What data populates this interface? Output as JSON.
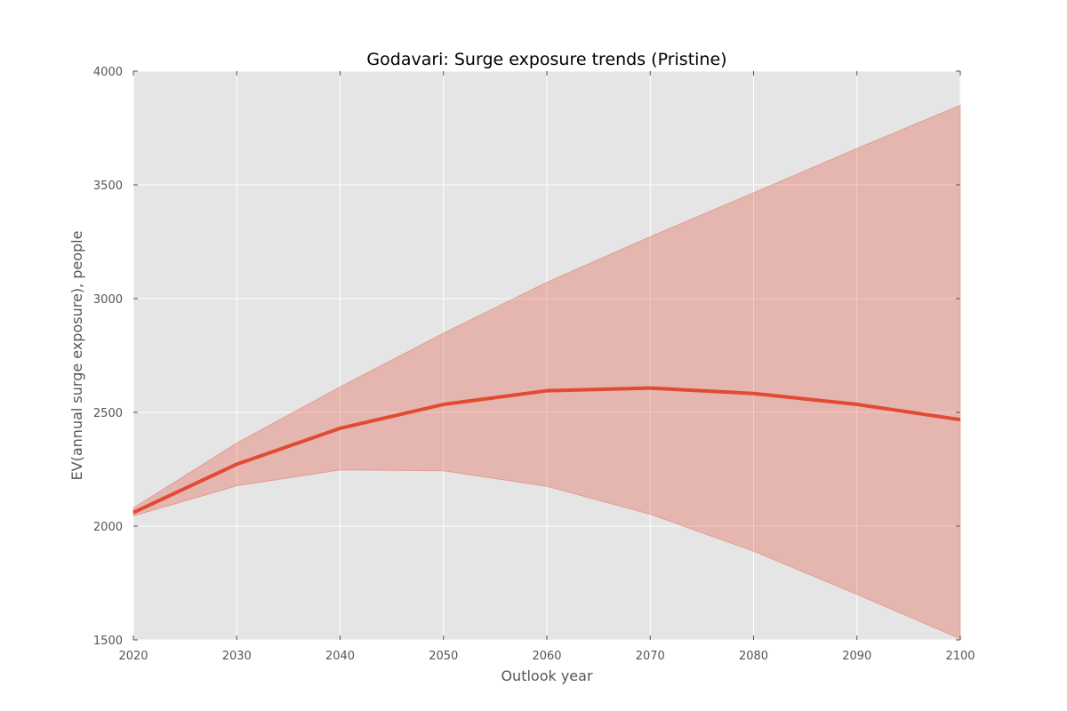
{
  "chart_data": {
    "type": "area",
    "title": "Godavari: Surge exposure trends (Pristine)",
    "xlabel": "Outlook year",
    "ylabel": "EV(annual surge exposure), people",
    "xlim": [
      2020,
      2100
    ],
    "ylim": [
      1500,
      4000
    ],
    "x": [
      2020,
      2030,
      2040,
      2050,
      2060,
      2070,
      2080,
      2090,
      2100
    ],
    "xticks": [
      2020,
      2030,
      2040,
      2050,
      2060,
      2070,
      2080,
      2090,
      2100
    ],
    "yticks": [
      1500,
      2000,
      2500,
      3000,
      3500,
      4000
    ],
    "grid": true,
    "series": [
      {
        "kind": "line",
        "values": [
          2060,
          2272,
          2430,
          2535,
          2595,
          2607,
          2583,
          2535,
          2468
        ],
        "color": "#e24a33"
      },
      {
        "kind": "band",
        "upper": [
          2080,
          2365,
          2612,
          2848,
          3072,
          3272,
          3465,
          3660,
          3850
        ],
        "lower": [
          2045,
          2177,
          2247,
          2243,
          2175,
          2052,
          1890,
          1700,
          1505
        ],
        "color": "#e24a33",
        "opacity": 0.3
      }
    ],
    "colors": {
      "plot_background": "#e5e5e5",
      "grid": "#ffffff",
      "line": "#e24a33",
      "band": "#e24a33"
    }
  }
}
